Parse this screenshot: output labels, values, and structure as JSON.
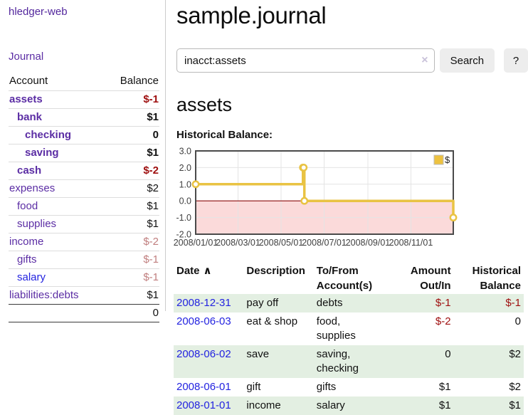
{
  "sidebar": {
    "brand": "hledger-web",
    "journal_label": "Journal",
    "accounts_table": {
      "account_header": "Account",
      "balance_header": "Balance",
      "rows": [
        {
          "account": "assets",
          "balance": "$-1",
          "indent": 0,
          "bold": true,
          "balance_color": "negative"
        },
        {
          "account": "bank",
          "balance": "$1",
          "indent": 1,
          "bold": true,
          "balance_color": "normal"
        },
        {
          "account": "checking",
          "balance": "0",
          "indent": 2,
          "bold": true,
          "balance_color": "normal"
        },
        {
          "account": "saving",
          "balance": "$1",
          "indent": 2,
          "bold": true,
          "balance_color": "normal"
        },
        {
          "account": "cash",
          "balance": "$-2",
          "indent": 1,
          "bold": true,
          "balance_color": "negative"
        },
        {
          "account": "expenses",
          "balance": "$2",
          "indent": 0,
          "bold": false,
          "balance_color": "normal"
        },
        {
          "account": "food",
          "balance": "$1",
          "indent": 1,
          "bold": false,
          "balance_color": "normal"
        },
        {
          "account": "supplies",
          "balance": "$1",
          "indent": 1,
          "bold": false,
          "balance_color": "normal"
        },
        {
          "account": "income",
          "balance": "$-2",
          "indent": 0,
          "bold": false,
          "balance_color": "negative-faded"
        },
        {
          "account": "gifts",
          "balance": "$-1",
          "indent": 1,
          "bold": false,
          "balance_color": "negative-faded"
        },
        {
          "account": "salary",
          "balance": "$-1",
          "indent": 1,
          "bold": false,
          "balance_color": "negative-faded",
          "link": "blue"
        },
        {
          "account": "liabilities:debts",
          "balance": "$1",
          "indent": 0,
          "bold": false,
          "balance_color": "normal"
        }
      ],
      "total": "0"
    }
  },
  "header": {
    "title": "sample.journal"
  },
  "search": {
    "query": "inacct:assets",
    "clear_icon": "×",
    "button_label": "Search",
    "help_label": "?"
  },
  "content": {
    "account_heading": "assets",
    "chart_label": "Historical Balance:"
  },
  "chart_data": {
    "type": "line",
    "step": true,
    "title": "Historical Balance",
    "legend": [
      {
        "label": "$",
        "color": "#edc240"
      }
    ],
    "legend_position": "top-right",
    "x_range": [
      "2008-01-01",
      "2008-12-31"
    ],
    "xticks": [
      "2008/01/01",
      "2008/03/01",
      "2008/05/01",
      "2008/07/01",
      "2008/09/01",
      "2008/11/01"
    ],
    "yticks": [
      "3.0",
      "2.0",
      "1.0",
      "0.0",
      "-1.0",
      "-2.0"
    ],
    "ylim": [
      -2,
      3
    ],
    "grid": true,
    "points": [
      {
        "date": "2008-01-01",
        "value": 1
      },
      {
        "date": "2008-06-01",
        "value": 2
      },
      {
        "date": "2008-06-02",
        "value": 2
      },
      {
        "date": "2008-06-03",
        "value": 0
      },
      {
        "date": "2008-12-31",
        "value": -1
      }
    ],
    "colors": {
      "line": "#e9c343",
      "marker_fill": "#ffffff",
      "negative_region": "#fbdada",
      "zero_line": "#8f0b0b",
      "gridline": "#e4e4e4",
      "border": "#4a4a4a",
      "tick_text": "#3f3f3f"
    }
  },
  "register": {
    "headers": [
      {
        "lines": [
          "Date"
        ],
        "align": "left",
        "sort": "∧",
        "sortable": true
      },
      {
        "lines": [
          "Description"
        ],
        "align": "left"
      },
      {
        "lines": [
          "To/From",
          "Account(s)"
        ],
        "align": "left"
      },
      {
        "lines": [
          "Amount",
          "Out/In"
        ],
        "align": "right"
      },
      {
        "lines": [
          "Historical",
          "Balance"
        ],
        "align": "right"
      }
    ],
    "rows": [
      {
        "date": "2008-12-31",
        "description": "pay off",
        "accounts": "debts",
        "amount": "$-1",
        "balance": "$-1"
      },
      {
        "date": "2008-06-03",
        "description": "eat & shop",
        "accounts": "food, supplies",
        "amount": "$-2",
        "balance": "0"
      },
      {
        "date": "2008-06-02",
        "description": "save",
        "accounts": "saving, checking",
        "amount": "0",
        "balance": "$2"
      },
      {
        "date": "2008-06-01",
        "description": "gift",
        "accounts": "gifts",
        "amount": "$1",
        "balance": "$2"
      },
      {
        "date": "2008-01-01",
        "description": "income",
        "accounts": "salary",
        "amount": "$1",
        "balance": "$1"
      }
    ]
  }
}
